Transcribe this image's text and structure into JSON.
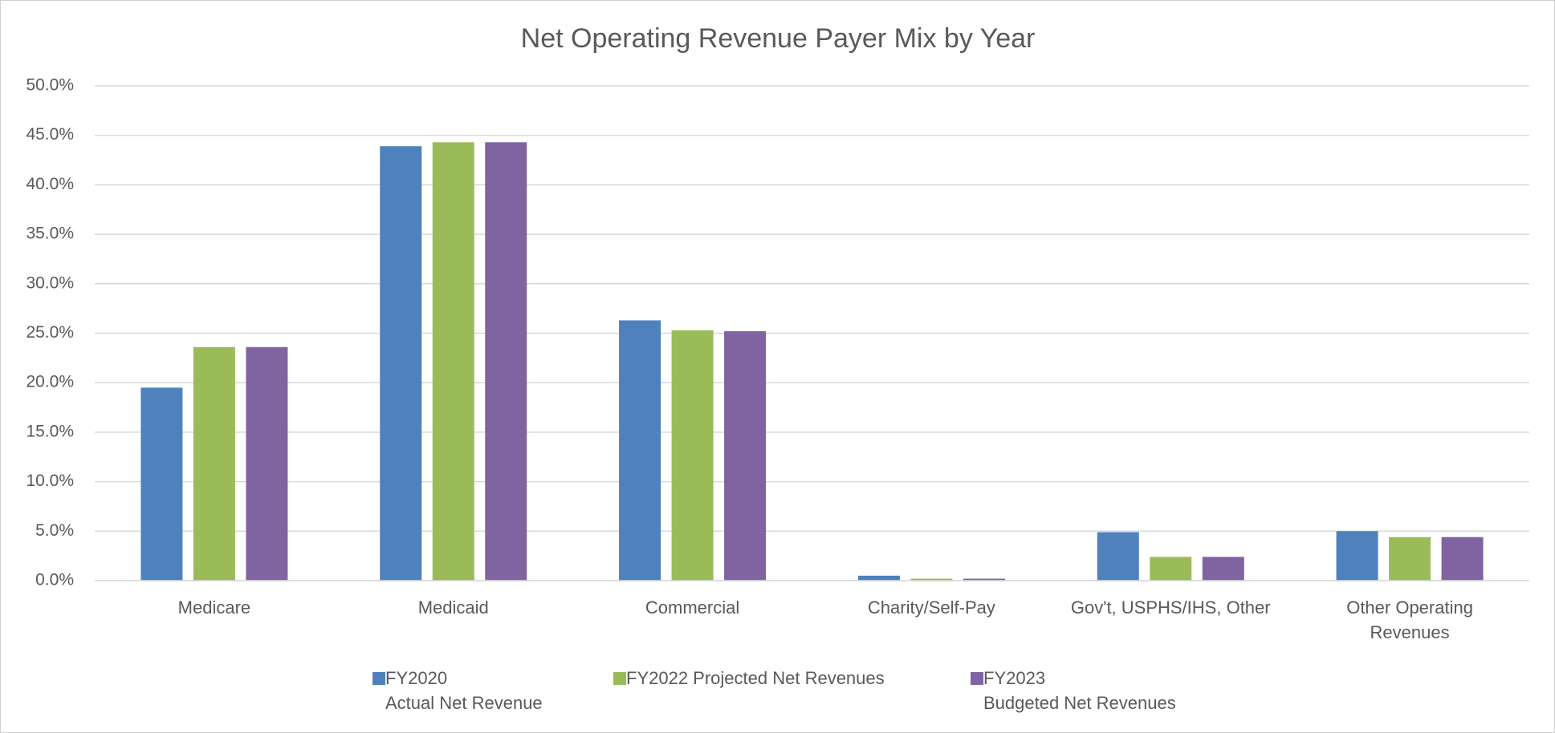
{
  "chart_data": {
    "type": "bar",
    "title": "Net Operating Revenue Payer Mix by Year",
    "categories": [
      "Medicare",
      "Medicaid",
      "Commercial",
      "Charity/Self-Pay",
      "Gov't, USPHS/IHS, Other",
      "Other Operating\nRevenues"
    ],
    "series": [
      {
        "name": "FY2020\nActual Net Revenue",
        "color": "#4f81bd",
        "values": [
          19.5,
          43.9,
          26.3,
          0.5,
          4.9,
          5.0
        ]
      },
      {
        "name": "FY2022 Projected Net Revenues",
        "color": "#9bbb59",
        "values": [
          23.6,
          44.3,
          25.3,
          0.2,
          2.4,
          4.4
        ]
      },
      {
        "name": "FY2023\nBudgeted Net Revenues",
        "color": "#8064a2",
        "values": [
          23.6,
          44.3,
          25.2,
          0.2,
          2.4,
          4.4
        ]
      }
    ],
    "ylim": [
      0,
      50
    ],
    "yticks": [
      {
        "value": 0,
        "label": "0.0%"
      },
      {
        "value": 5,
        "label": "5.0%"
      },
      {
        "value": 10,
        "label": "10.0%"
      },
      {
        "value": 15,
        "label": "15.0%"
      },
      {
        "value": 20,
        "label": "20.0%"
      },
      {
        "value": 25,
        "label": "25.0%"
      },
      {
        "value": 30,
        "label": "30.0%"
      },
      {
        "value": 35,
        "label": "35.0%"
      },
      {
        "value": 40,
        "label": "40.0%"
      },
      {
        "value": 45,
        "label": "45.0%"
      },
      {
        "value": 50,
        "label": "50.0%"
      }
    ],
    "grid": true,
    "legend": "bottom"
  }
}
